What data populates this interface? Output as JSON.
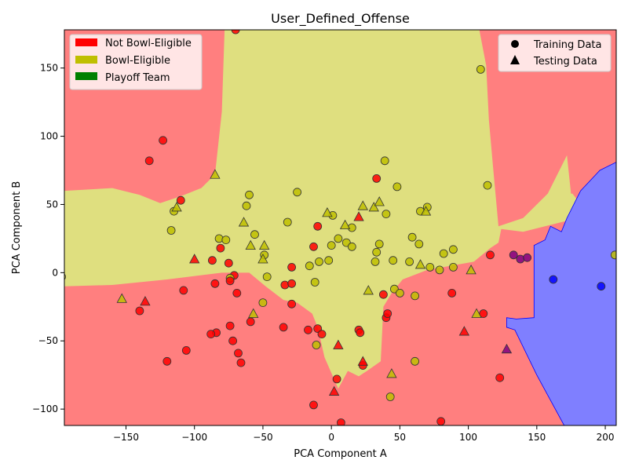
{
  "chart_data": {
    "type": "scatter",
    "title": "User_Defined_Offense",
    "xlabel": "PCA Component A",
    "ylabel": "PCA Component B",
    "xlim": [
      -195,
      208
    ],
    "ylim": [
      -112,
      178
    ],
    "xticks": [
      -150,
      -100,
      -50,
      0,
      50,
      100,
      150,
      200
    ],
    "yticks": [
      -100,
      -50,
      0,
      50,
      100,
      150
    ],
    "grid": false,
    "colors": {
      "not_bowl": "#ff0000",
      "bowl": "#bfbf00",
      "playoff": "#008000",
      "region_not_bowl": "#ff7f7f",
      "region_bowl": "#dfdf7f",
      "region_playoff": "#7f7fff",
      "point_playoff": "#0000ff",
      "point_not_bowl_in_playoff": "#800080"
    },
    "legend_classes": {
      "placement": "upper left",
      "entries": [
        "Not Bowl-Eligible",
        "Bowl-Eligible",
        "Playoff Team"
      ]
    },
    "legend_markers": {
      "placement": "upper right",
      "entries": [
        {
          "label": "Training Data",
          "marker": "circle"
        },
        {
          "label": "Testing Data",
          "marker": "triangle"
        }
      ]
    },
    "regions": {
      "bowl": [
        [
          -195,
          60
        ],
        [
          -160,
          62
        ],
        [
          -140,
          57
        ],
        [
          -125,
          51
        ],
        [
          -110,
          56
        ],
        [
          -95,
          62
        ],
        [
          -85,
          72
        ],
        [
          -80,
          118
        ],
        [
          -78,
          178
        ],
        [
          108,
          178
        ],
        [
          113,
          152
        ],
        [
          115,
          112
        ],
        [
          118,
          78
        ],
        [
          122,
          34
        ],
        [
          140,
          40
        ],
        [
          158,
          58
        ],
        [
          172,
          86
        ],
        [
          175,
          58
        ],
        [
          176,
          58
        ],
        [
          190,
          40
        ],
        [
          185,
          30
        ],
        [
          172,
          38
        ],
        [
          140,
          30
        ],
        [
          124,
          32
        ],
        [
          122,
          22
        ],
        [
          116,
          18
        ],
        [
          104,
          8
        ],
        [
          70,
          2
        ],
        [
          52,
          -5
        ],
        [
          44,
          -15
        ],
        [
          38,
          -25
        ],
        [
          36,
          -65
        ],
        [
          26,
          -72
        ],
        [
          20,
          -76
        ],
        [
          12,
          -72
        ],
        [
          5,
          -85
        ],
        [
          -5,
          -62
        ],
        [
          -10,
          -40
        ],
        [
          -14,
          -30
        ],
        [
          -25,
          -22
        ],
        [
          -35,
          -20
        ],
        [
          -48,
          -10
        ],
        [
          -60,
          0
        ],
        [
          -80,
          0
        ],
        [
          -120,
          -5
        ],
        [
          -160,
          -9
        ],
        [
          -195,
          -10
        ]
      ],
      "playoff": [
        [
          208,
          81
        ],
        [
          196,
          75
        ],
        [
          182,
          60
        ],
        [
          172,
          40
        ],
        [
          168,
          30
        ],
        [
          160,
          34
        ],
        [
          156,
          24
        ],
        [
          148,
          20
        ],
        [
          148,
          -33
        ],
        [
          135,
          -34
        ],
        [
          128,
          -33
        ],
        [
          128,
          -37
        ],
        [
          128,
          -40
        ],
        [
          134,
          -42
        ],
        [
          150,
          -75
        ],
        [
          170,
          -112
        ],
        [
          208,
          -112
        ]
      ]
    },
    "series": [
      {
        "name": "Training Data",
        "marker": "circle",
        "points": [
          {
            "x": -197,
            "y": -3,
            "cls": "bowl"
          },
          {
            "x": -133,
            "y": 82,
            "cls": "not_bowl"
          },
          {
            "x": -123,
            "y": 97,
            "cls": "not_bowl"
          },
          {
            "x": -110,
            "y": 53,
            "cls": "not_bowl"
          },
          {
            "x": -115,
            "y": 45,
            "cls": "bowl"
          },
          {
            "x": -117,
            "y": 31,
            "cls": "bowl"
          },
          {
            "x": -140,
            "y": -28,
            "cls": "not_bowl"
          },
          {
            "x": -108,
            "y": -13,
            "cls": "not_bowl"
          },
          {
            "x": -106,
            "y": -57,
            "cls": "not_bowl"
          },
          {
            "x": -120,
            "y": -65,
            "cls": "not_bowl"
          },
          {
            "x": -87,
            "y": 9,
            "cls": "not_bowl"
          },
          {
            "x": -85,
            "y": -8,
            "cls": "not_bowl"
          },
          {
            "x": -84,
            "y": -44,
            "cls": "not_bowl"
          },
          {
            "x": -88,
            "y": -45,
            "cls": "not_bowl"
          },
          {
            "x": -70,
            "y": 178,
            "cls": "not_bowl"
          },
          {
            "x": -82,
            "y": 25,
            "cls": "bowl"
          },
          {
            "x": -77,
            "y": 24,
            "cls": "bowl"
          },
          {
            "x": -81,
            "y": 18,
            "cls": "not_bowl"
          },
          {
            "x": -75,
            "y": 7,
            "cls": "not_bowl"
          },
          {
            "x": -71,
            "y": -2,
            "cls": "not_bowl"
          },
          {
            "x": -74,
            "y": -4,
            "cls": "bowl"
          },
          {
            "x": -74,
            "y": -6,
            "cls": "not_bowl"
          },
          {
            "x": -69,
            "y": -15,
            "cls": "not_bowl"
          },
          {
            "x": -74,
            "y": -39,
            "cls": "not_bowl"
          },
          {
            "x": -72,
            "y": -50,
            "cls": "not_bowl"
          },
          {
            "x": -68,
            "y": -59,
            "cls": "not_bowl"
          },
          {
            "x": -66,
            "y": -66,
            "cls": "not_bowl"
          },
          {
            "x": -62,
            "y": 49,
            "cls": "bowl"
          },
          {
            "x": -60,
            "y": 57,
            "cls": "bowl"
          },
          {
            "x": -56,
            "y": 28,
            "cls": "bowl"
          },
          {
            "x": -59,
            "y": -36,
            "cls": "not_bowl"
          },
          {
            "x": -49,
            "y": 13,
            "cls": "bowl"
          },
          {
            "x": -47,
            "y": -3,
            "cls": "bowl"
          },
          {
            "x": -50,
            "y": -22,
            "cls": "bowl"
          },
          {
            "x": -25,
            "y": 59,
            "cls": "bowl"
          },
          {
            "x": -32,
            "y": 37,
            "cls": "bowl"
          },
          {
            "x": -34,
            "y": -9,
            "cls": "not_bowl"
          },
          {
            "x": -29,
            "y": 4,
            "cls": "not_bowl"
          },
          {
            "x": -29,
            "y": -8,
            "cls": "not_bowl"
          },
          {
            "x": -29,
            "y": -23,
            "cls": "not_bowl"
          },
          {
            "x": -35,
            "y": -40,
            "cls": "not_bowl"
          },
          {
            "x": -16,
            "y": 5,
            "cls": "bowl"
          },
          {
            "x": -13,
            "y": 19,
            "cls": "not_bowl"
          },
          {
            "x": -10,
            "y": 34,
            "cls": "not_bowl"
          },
          {
            "x": -12,
            "y": -7,
            "cls": "bowl"
          },
          {
            "x": -10,
            "y": -41,
            "cls": "not_bowl"
          },
          {
            "x": -17,
            "y": -42,
            "cls": "not_bowl"
          },
          {
            "x": -11,
            "y": -53,
            "cls": "bowl"
          },
          {
            "x": -7,
            "y": -45,
            "cls": "not_bowl"
          },
          {
            "x": -13,
            "y": -97,
            "cls": "not_bowl"
          },
          {
            "x": -9,
            "y": 8,
            "cls": "bowl"
          },
          {
            "x": -2,
            "y": 9,
            "cls": "bowl"
          },
          {
            "x": 0,
            "y": 20,
            "cls": "bowl"
          },
          {
            "x": 1,
            "y": 42,
            "cls": "bowl"
          },
          {
            "x": 5,
            "y": 25,
            "cls": "bowl"
          },
          {
            "x": 4,
            "y": -78,
            "cls": "not_bowl"
          },
          {
            "x": 7,
            "y": -110,
            "cls": "not_bowl"
          },
          {
            "x": 11,
            "y": 22,
            "cls": "bowl"
          },
          {
            "x": 15,
            "y": 33,
            "cls": "bowl"
          },
          {
            "x": 15,
            "y": 19,
            "cls": "bowl"
          },
          {
            "x": 20,
            "y": -42,
            "cls": "not_bowl"
          },
          {
            "x": 21,
            "y": -44,
            "cls": "not_bowl"
          },
          {
            "x": 23,
            "y": -68,
            "cls": "not_bowl"
          },
          {
            "x": 33,
            "y": 69,
            "cls": "not_bowl"
          },
          {
            "x": 33,
            "y": 15,
            "cls": "bowl"
          },
          {
            "x": 32,
            "y": 8,
            "cls": "bowl"
          },
          {
            "x": 35,
            "y": 21,
            "cls": "bowl"
          },
          {
            "x": 38,
            "y": -16,
            "cls": "not_bowl"
          },
          {
            "x": 40,
            "y": -33,
            "cls": "not_bowl"
          },
          {
            "x": 39,
            "y": 82,
            "cls": "bowl"
          },
          {
            "x": 40,
            "y": 43,
            "cls": "bowl"
          },
          {
            "x": 41,
            "y": -30,
            "cls": "not_bowl"
          },
          {
            "x": 43,
            "y": -91,
            "cls": "bowl"
          },
          {
            "x": 45,
            "y": 9,
            "cls": "bowl"
          },
          {
            "x": 46,
            "y": -12,
            "cls": "bowl"
          },
          {
            "x": 48,
            "y": 63,
            "cls": "bowl"
          },
          {
            "x": 50,
            "y": -15,
            "cls": "bowl"
          },
          {
            "x": 57,
            "y": 8,
            "cls": "bowl"
          },
          {
            "x": 59,
            "y": 26,
            "cls": "bowl"
          },
          {
            "x": 61,
            "y": -17,
            "cls": "bowl"
          },
          {
            "x": 61,
            "y": -65,
            "cls": "bowl"
          },
          {
            "x": 64,
            "y": 21,
            "cls": "bowl"
          },
          {
            "x": 65,
            "y": 45,
            "cls": "bowl"
          },
          {
            "x": 70,
            "y": 48,
            "cls": "bowl"
          },
          {
            "x": 72,
            "y": 4,
            "cls": "bowl"
          },
          {
            "x": 79,
            "y": 2,
            "cls": "bowl"
          },
          {
            "x": 80,
            "y": -109,
            "cls": "not_bowl"
          },
          {
            "x": 82,
            "y": 14,
            "cls": "bowl"
          },
          {
            "x": 89,
            "y": 17,
            "cls": "bowl"
          },
          {
            "x": 88,
            "y": -15,
            "cls": "not_bowl"
          },
          {
            "x": 89,
            "y": 4,
            "cls": "bowl"
          },
          {
            "x": 109,
            "y": 149,
            "cls": "bowl"
          },
          {
            "x": 111,
            "y": -30,
            "cls": "not_bowl"
          },
          {
            "x": 114,
            "y": 64,
            "cls": "bowl"
          },
          {
            "x": 116,
            "y": 13,
            "cls": "not_bowl"
          },
          {
            "x": 133,
            "y": 13,
            "cls": "not_bowl"
          },
          {
            "x": 138,
            "y": 10,
            "cls": "not_bowl"
          },
          {
            "x": 143,
            "y": 11,
            "cls": "not_bowl"
          },
          {
            "x": 123,
            "y": -77,
            "cls": "not_bowl"
          },
          {
            "x": 162,
            "y": -5,
            "cls": "playoff"
          },
          {
            "x": 197,
            "y": -10,
            "cls": "playoff"
          },
          {
            "x": 207,
            "y": 13,
            "cls": "bowl"
          }
        ]
      },
      {
        "name": "Testing Data",
        "marker": "triangle",
        "points": [
          {
            "x": -153,
            "y": -19,
            "cls": "bowl"
          },
          {
            "x": -136,
            "y": -21,
            "cls": "not_bowl"
          },
          {
            "x": -113,
            "y": 48,
            "cls": "bowl"
          },
          {
            "x": -100,
            "y": 10,
            "cls": "not_bowl"
          },
          {
            "x": -85,
            "y": 72,
            "cls": "bowl"
          },
          {
            "x": -64,
            "y": 37,
            "cls": "bowl"
          },
          {
            "x": -59,
            "y": 20,
            "cls": "bowl"
          },
          {
            "x": -57,
            "y": -30,
            "cls": "bowl"
          },
          {
            "x": -50,
            "y": 10,
            "cls": "bowl"
          },
          {
            "x": -49,
            "y": 20,
            "cls": "bowl"
          },
          {
            "x": -3,
            "y": 44,
            "cls": "bowl"
          },
          {
            "x": 2,
            "y": -87,
            "cls": "not_bowl"
          },
          {
            "x": 5,
            "y": -53,
            "cls": "not_bowl"
          },
          {
            "x": 10,
            "y": 35,
            "cls": "bowl"
          },
          {
            "x": 20,
            "y": 41,
            "cls": "not_bowl"
          },
          {
            "x": 23,
            "y": 49,
            "cls": "bowl"
          },
          {
            "x": 23,
            "y": -65,
            "cls": "not_bowl"
          },
          {
            "x": 27,
            "y": -13,
            "cls": "bowl"
          },
          {
            "x": 31,
            "y": 48,
            "cls": "bowl"
          },
          {
            "x": 35,
            "y": 52,
            "cls": "bowl"
          },
          {
            "x": 44,
            "y": -74,
            "cls": "bowl"
          },
          {
            "x": 65,
            "y": 6,
            "cls": "bowl"
          },
          {
            "x": 69,
            "y": 45,
            "cls": "bowl"
          },
          {
            "x": 97,
            "y": -43,
            "cls": "not_bowl"
          },
          {
            "x": 102,
            "y": 2,
            "cls": "bowl"
          },
          {
            "x": 106,
            "y": -30,
            "cls": "bowl"
          },
          {
            "x": 128,
            "y": -56,
            "cls": "not_bowl"
          }
        ]
      }
    ]
  }
}
